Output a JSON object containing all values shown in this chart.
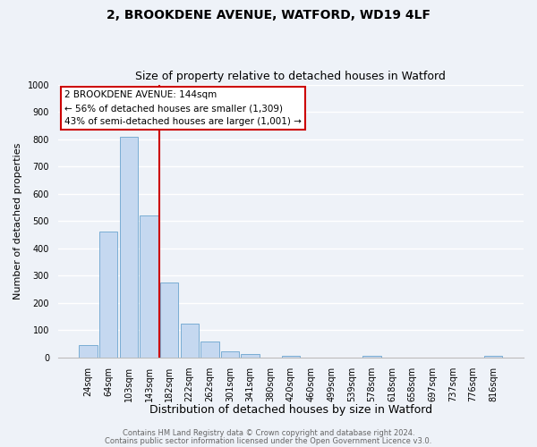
{
  "title": "2, BROOKDENE AVENUE, WATFORD, WD19 4LF",
  "subtitle": "Size of property relative to detached houses in Watford",
  "xlabel": "Distribution of detached houses by size in Watford",
  "ylabel": "Number of detached properties",
  "bar_labels": [
    "24sqm",
    "64sqm",
    "103sqm",
    "143sqm",
    "182sqm",
    "222sqm",
    "262sqm",
    "301sqm",
    "341sqm",
    "380sqm",
    "420sqm",
    "460sqm",
    "499sqm",
    "539sqm",
    "578sqm",
    "618sqm",
    "658sqm",
    "697sqm",
    "737sqm",
    "776sqm",
    "816sqm"
  ],
  "bar_values": [
    47,
    460,
    810,
    520,
    275,
    125,
    58,
    22,
    12,
    0,
    8,
    0,
    0,
    0,
    5,
    0,
    0,
    0,
    0,
    0,
    8
  ],
  "bar_color": "#c5d8f0",
  "bar_edge_color": "#7aadd4",
  "vline_x_index": 3,
  "vline_color": "#cc0000",
  "ylim": [
    0,
    1000
  ],
  "yticks": [
    0,
    100,
    200,
    300,
    400,
    500,
    600,
    700,
    800,
    900,
    1000
  ],
  "annotation_title": "2 BROOKDENE AVENUE: 144sqm",
  "annotation_line1": "← 56% of detached houses are smaller (1,309)",
  "annotation_line2": "43% of semi-detached houses are larger (1,001) →",
  "annotation_box_color": "#ffffff",
  "annotation_box_edge": "#cc0000",
  "footer1": "Contains HM Land Registry data © Crown copyright and database right 2024.",
  "footer2": "Contains public sector information licensed under the Open Government Licence v3.0.",
  "bg_color": "#eef2f8",
  "grid_color": "#ffffff",
  "title_fontsize": 10,
  "subtitle_fontsize": 9,
  "ylabel_fontsize": 8,
  "xlabel_fontsize": 9,
  "tick_fontsize": 7,
  "annotation_fontsize": 7.5,
  "footer_fontsize": 6
}
